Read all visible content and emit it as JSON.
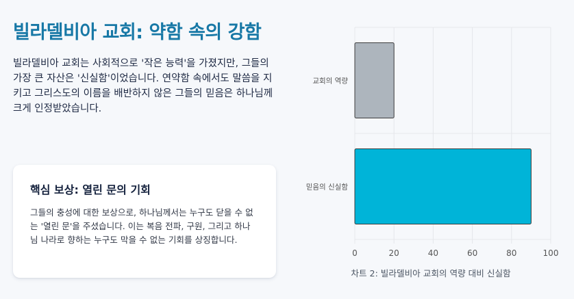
{
  "left": {
    "title": "빌라델비아 교회: 약함 속의 강함",
    "intro": "빌라델비아 교회는 사회적으로 '작은 능력'을 가졌지만, 그들의 가장 큰 자산은 '신실함'이었습니다. 연약함 속에서도 말씀을 지키고 그리스도의 이름을 배반하지 않은 그들의 믿음은 하나님께 크게 인정받았습니다."
  },
  "card": {
    "title": "핵심 보상: 열린 문의 기회",
    "body": "그들의 충성에 대한 보상으로, 하나님께서는 누구도 닫을 수 없는 '열린 문'을 주셨습니다. 이는 복음 전파, 구원, 그리고 하나님 나라로 향하는 누구도 막을 수 없는 기회를 상징합니다."
  },
  "chart_caption": "차트 2: 빌라델비아 교회의 역량 대비 신실함",
  "chart_data": {
    "type": "bar",
    "orientation": "horizontal",
    "categories": [
      "교회의 역량",
      "믿음의 신실함"
    ],
    "values": [
      20,
      90
    ],
    "colors": [
      "#adb5bd",
      "#00b4d8"
    ],
    "xlim": [
      0,
      100
    ],
    "xticks": [
      "0",
      "20",
      "40",
      "60",
      "80",
      "100"
    ],
    "grid": true,
    "title": "",
    "xlabel": "",
    "ylabel": ""
  }
}
